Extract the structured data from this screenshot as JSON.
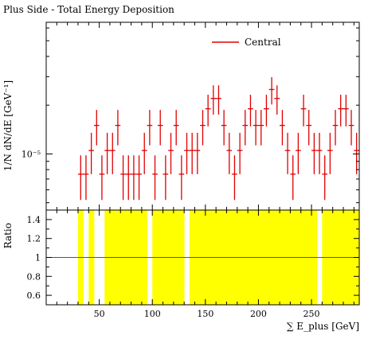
{
  "chart_data": [
    {
      "type": "scatter",
      "title": "Plus Side - Total Energy Deposition",
      "ylabel": "1/N dN/dE [GeV⁻¹]",
      "ylog": true,
      "ylim": [
        4.5e-06,
        6.5e-05
      ],
      "xlim": [
        0,
        295
      ],
      "y_tick_labels": [
        {
          "value": 1e-05,
          "label": "10⁻⁵"
        }
      ],
      "legend": {
        "position": "top-right",
        "entries": [
          "Central"
        ]
      },
      "series": [
        {
          "name": "Central",
          "color": "#e00000",
          "x": [
            32.5,
            37.5,
            42.5,
            47.5,
            52.5,
            57.5,
            62.5,
            67.5,
            72.5,
            77.5,
            82.5,
            87.5,
            92.5,
            97.5,
            102.5,
            107.5,
            112.5,
            117.5,
            122.5,
            127.5,
            132.5,
            137.5,
            142.5,
            147.5,
            152.5,
            157.5,
            162.5,
            167.5,
            172.5,
            177.5,
            182.5,
            187.5,
            192.5,
            197.5,
            202.5,
            207.5,
            212.5,
            217.5,
            222.5,
            227.5,
            232.5,
            237.5,
            242.5,
            247.5,
            252.5,
            257.5,
            262.5,
            267.5,
            272.5,
            277.5,
            282.5,
            287.5,
            292.5
          ],
          "y": [
            7.5e-06,
            7.5e-06,
            1.05e-05,
            1.5e-05,
            7.5e-06,
            1.05e-05,
            1.05e-05,
            1.5e-05,
            7.5e-06,
            7.5e-06,
            7.5e-06,
            7.5e-06,
            1.05e-05,
            1.5e-05,
            7.5e-06,
            1.5e-05,
            7.5e-06,
            1.05e-05,
            1.5e-05,
            7.5e-06,
            1.05e-05,
            1.05e-05,
            1.05e-05,
            1.5e-05,
            1.9e-05,
            2.2e-05,
            2.2e-05,
            1.5e-05,
            1.05e-05,
            7.5e-06,
            1.05e-05,
            1.5e-05,
            1.9e-05,
            1.5e-05,
            1.5e-05,
            1.9e-05,
            2.5e-05,
            2.2e-05,
            1.5e-05,
            1.05e-05,
            7.5e-06,
            1.05e-05,
            1.9e-05,
            1.5e-05,
            1.05e-05,
            1.05e-05,
            7.5e-06,
            1.05e-05,
            1.5e-05,
            1.9e-05,
            1.9e-05,
            1.5e-05,
            1.05e-05
          ],
          "yerr": [
            2.3e-06,
            2.3e-06,
            3e-06,
            3.7e-06,
            2.3e-06,
            3e-06,
            3e-06,
            3.7e-06,
            2.3e-06,
            2.3e-06,
            2.3e-06,
            2.3e-06,
            3e-06,
            3.7e-06,
            2.3e-06,
            3.7e-06,
            2.3e-06,
            3e-06,
            3.7e-06,
            2.3e-06,
            3e-06,
            3e-06,
            3e-06,
            3.7e-06,
            4.2e-06,
            4.5e-06,
            4.5e-06,
            3.7e-06,
            3e-06,
            2.3e-06,
            3e-06,
            3.7e-06,
            4.2e-06,
            3.7e-06,
            3.7e-06,
            4.2e-06,
            4.8e-06,
            4.5e-06,
            3.7e-06,
            3e-06,
            2.3e-06,
            3e-06,
            4.2e-06,
            3.7e-06,
            3e-06,
            3e-06,
            2.3e-06,
            3e-06,
            3.7e-06,
            4.2e-06,
            4.2e-06,
            3.7e-06,
            3e-06
          ],
          "xerr": 2.5
        }
      ]
    },
    {
      "type": "area",
      "ylabel": "Ratio",
      "xlabel": "∑ E_plus [GeV]",
      "xlim": [
        0,
        295
      ],
      "ylim": [
        0.5,
        1.5
      ],
      "x_ticks": [
        50,
        100,
        150,
        200,
        250
      ],
      "y_ticks": [
        0.6,
        0.8,
        1.0,
        1.2,
        1.4
      ],
      "y_tick_labels": [
        "0.6",
        "0.8",
        "1",
        "1.2",
        "1.4"
      ],
      "reference_line": 1.0,
      "band_color": "#ffff00",
      "band_bins": [
        [
          30,
          35
        ],
        [
          40,
          45
        ],
        [
          55,
          60
        ],
        [
          60,
          65
        ],
        [
          65,
          70
        ],
        [
          70,
          75
        ],
        [
          75,
          80
        ],
        [
          80,
          85
        ],
        [
          85,
          90
        ],
        [
          90,
          95
        ],
        [
          100,
          105
        ],
        [
          105,
          110
        ],
        [
          110,
          115
        ],
        [
          115,
          120
        ],
        [
          120,
          125
        ],
        [
          125,
          130
        ],
        [
          135,
          140
        ],
        [
          140,
          145
        ],
        [
          145,
          150
        ],
        [
          150,
          155
        ],
        [
          155,
          160
        ],
        [
          160,
          165
        ],
        [
          165,
          170
        ],
        [
          170,
          175
        ],
        [
          175,
          180
        ],
        [
          180,
          185
        ],
        [
          185,
          190
        ],
        [
          190,
          195
        ],
        [
          195,
          200
        ],
        [
          200,
          205
        ],
        [
          205,
          210
        ],
        [
          210,
          215
        ],
        [
          215,
          220
        ],
        [
          220,
          225
        ],
        [
          225,
          230
        ],
        [
          230,
          235
        ],
        [
          235,
          240
        ],
        [
          240,
          245
        ],
        [
          245,
          250
        ],
        [
          250,
          255
        ],
        [
          260,
          265
        ],
        [
          265,
          270
        ],
        [
          270,
          275
        ],
        [
          275,
          280
        ],
        [
          280,
          285
        ],
        [
          285,
          290
        ],
        [
          290,
          295
        ]
      ]
    }
  ]
}
